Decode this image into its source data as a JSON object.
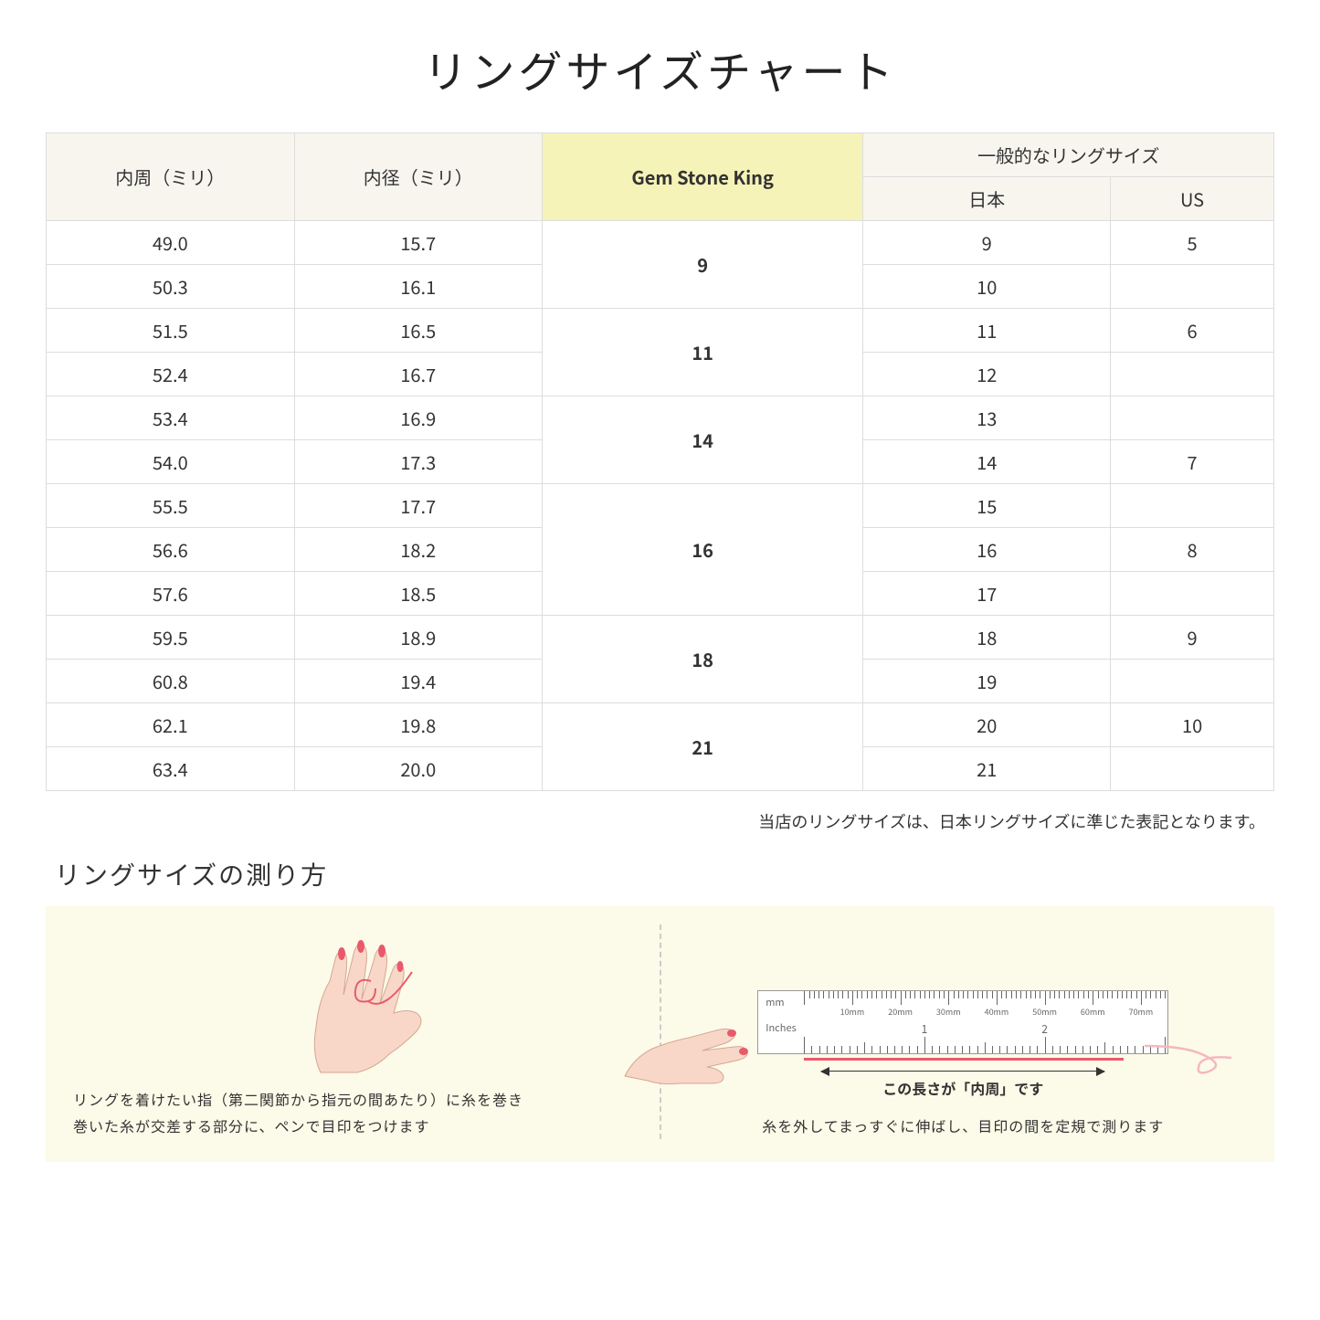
{
  "title": "リングサイズチャート",
  "table": {
    "headers": {
      "circumference": "内周（ミリ）",
      "diameter": "内径（ミリ）",
      "gemstone": "Gem Stone King",
      "common": "一般的なリングサイズ",
      "japan": "日本",
      "us": "US"
    },
    "rows": [
      {
        "circ": "49.0",
        "dia": "15.7",
        "gem": "9",
        "gemspan": 2,
        "jp": "9",
        "us": "5"
      },
      {
        "circ": "50.3",
        "dia": "16.1",
        "gem": null,
        "jp": "10",
        "us": ""
      },
      {
        "circ": "51.5",
        "dia": "16.5",
        "gem": "11",
        "gemspan": 2,
        "jp": "11",
        "us": "6"
      },
      {
        "circ": "52.4",
        "dia": "16.7",
        "gem": null,
        "jp": "12",
        "us": ""
      },
      {
        "circ": "53.4",
        "dia": "16.9",
        "gem": "14",
        "gemspan": 2,
        "jp": "13",
        "us": ""
      },
      {
        "circ": "54.0",
        "dia": "17.3",
        "gem": null,
        "jp": "14",
        "us": "7"
      },
      {
        "circ": "55.5",
        "dia": "17.7",
        "gem": "16",
        "gemspan": 3,
        "jp": "15",
        "us": ""
      },
      {
        "circ": "56.6",
        "dia": "18.2",
        "gem": null,
        "jp": "16",
        "us": "8"
      },
      {
        "circ": "57.6",
        "dia": "18.5",
        "gem": null,
        "jp": "17",
        "us": ""
      },
      {
        "circ": "59.5",
        "dia": "18.9",
        "gem": "18",
        "gemspan": 2,
        "jp": "18",
        "us": "9"
      },
      {
        "circ": "60.8",
        "dia": "19.4",
        "gem": null,
        "jp": "19",
        "us": ""
      },
      {
        "circ": "62.1",
        "dia": "19.8",
        "gem": "21",
        "gemspan": 2,
        "jp": "20",
        "us": "10"
      },
      {
        "circ": "63.4",
        "dia": "20.0",
        "gem": null,
        "jp": "21",
        "us": ""
      }
    ]
  },
  "note": "当店のリングサイズは、日本リングサイズに準じた表記となります。",
  "subtitle": "リングサイズの測り方",
  "step1": {
    "line1": "リングを着けたい指（第二関節から指元の間あたり）に糸を巻き",
    "line2": "巻いた糸が交差する部分に、ペンで目印をつけます"
  },
  "step2": {
    "ruler_mm": "mm",
    "ruler_in": "Inches",
    "mm_labels": [
      "10mm",
      "20mm",
      "30mm",
      "40mm",
      "50mm",
      "60mm",
      "70mm"
    ],
    "in_labels": [
      "1",
      "2"
    ],
    "measure_label": "この長さが「内周」です",
    "text": "糸を外してまっすぐに伸ばし、目印の間を定規で測ります"
  },
  "colors": {
    "header_bg": "#f7f5ee",
    "highlight_bg": "#f5f3b8",
    "instruction_bg": "#fcfae8",
    "skin": "#f8d7c9",
    "nail": "#e85a6b",
    "thread": "#e85a6b",
    "border": "#ddd"
  }
}
